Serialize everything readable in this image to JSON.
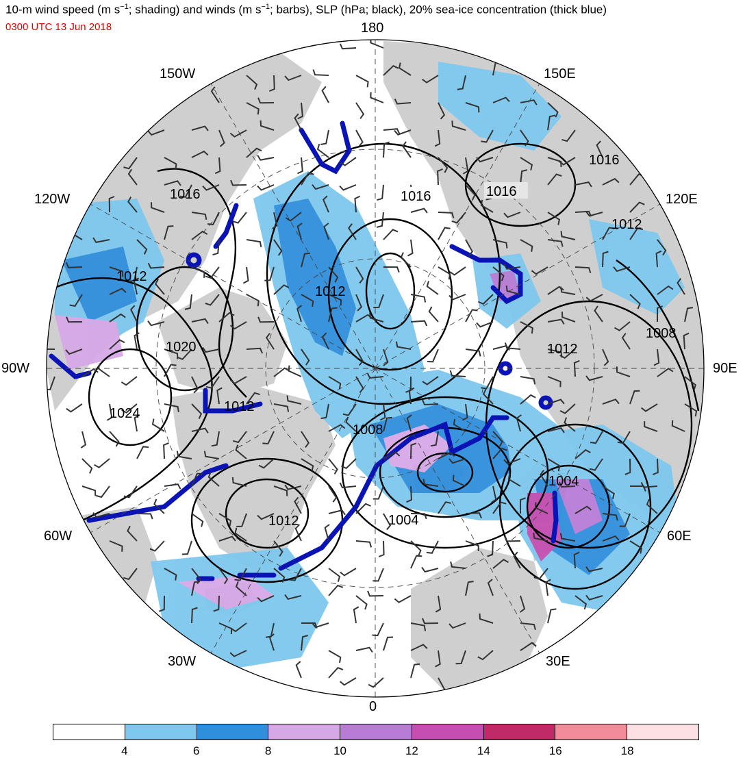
{
  "title": {
    "line1_prefix": "10-m wind speed (m s",
    "line1_sup1": "−1",
    "line1_mid": "; shading) and winds (m s",
    "line1_sup2": "−1",
    "line1_suffix": "; barbs), SLP (hPa; black), 20% sea-ice concentration (thick blue)",
    "valid_time": "0300 UTC 13 Jun 2018"
  },
  "longitude_labels": {
    "n": "180",
    "s": "0",
    "e": "90E",
    "w": "90W",
    "w150": "150W",
    "e150": "150E",
    "w120": "120W",
    "e120": "120E",
    "w60": "60W",
    "e60": "60E",
    "w30": "30W",
    "e30": "30E"
  },
  "slp_labels": [
    "1016",
    "1016",
    "1016",
    "1016",
    "1012",
    "1012",
    "1012",
    "1012",
    "1012",
    "1012",
    "1020",
    "1024",
    "1008",
    "1008",
    "1004",
    "1004"
  ],
  "colorbar": {
    "colors": [
      "#ffffff",
      "#7ec8ee",
      "#2f8fdc",
      "#d6a9e6",
      "#b77cd6",
      "#c44eb2",
      "#c02a66",
      "#f28c9a",
      "#fbe0e4"
    ],
    "ticks": [
      "4",
      "6",
      "8",
      "10",
      "12",
      "14",
      "16",
      "18"
    ]
  },
  "colors": {
    "land": "#cfcfcf",
    "ice_edge": "#0a14b4",
    "isobar": "#000000",
    "valid_time": "#e00000"
  }
}
